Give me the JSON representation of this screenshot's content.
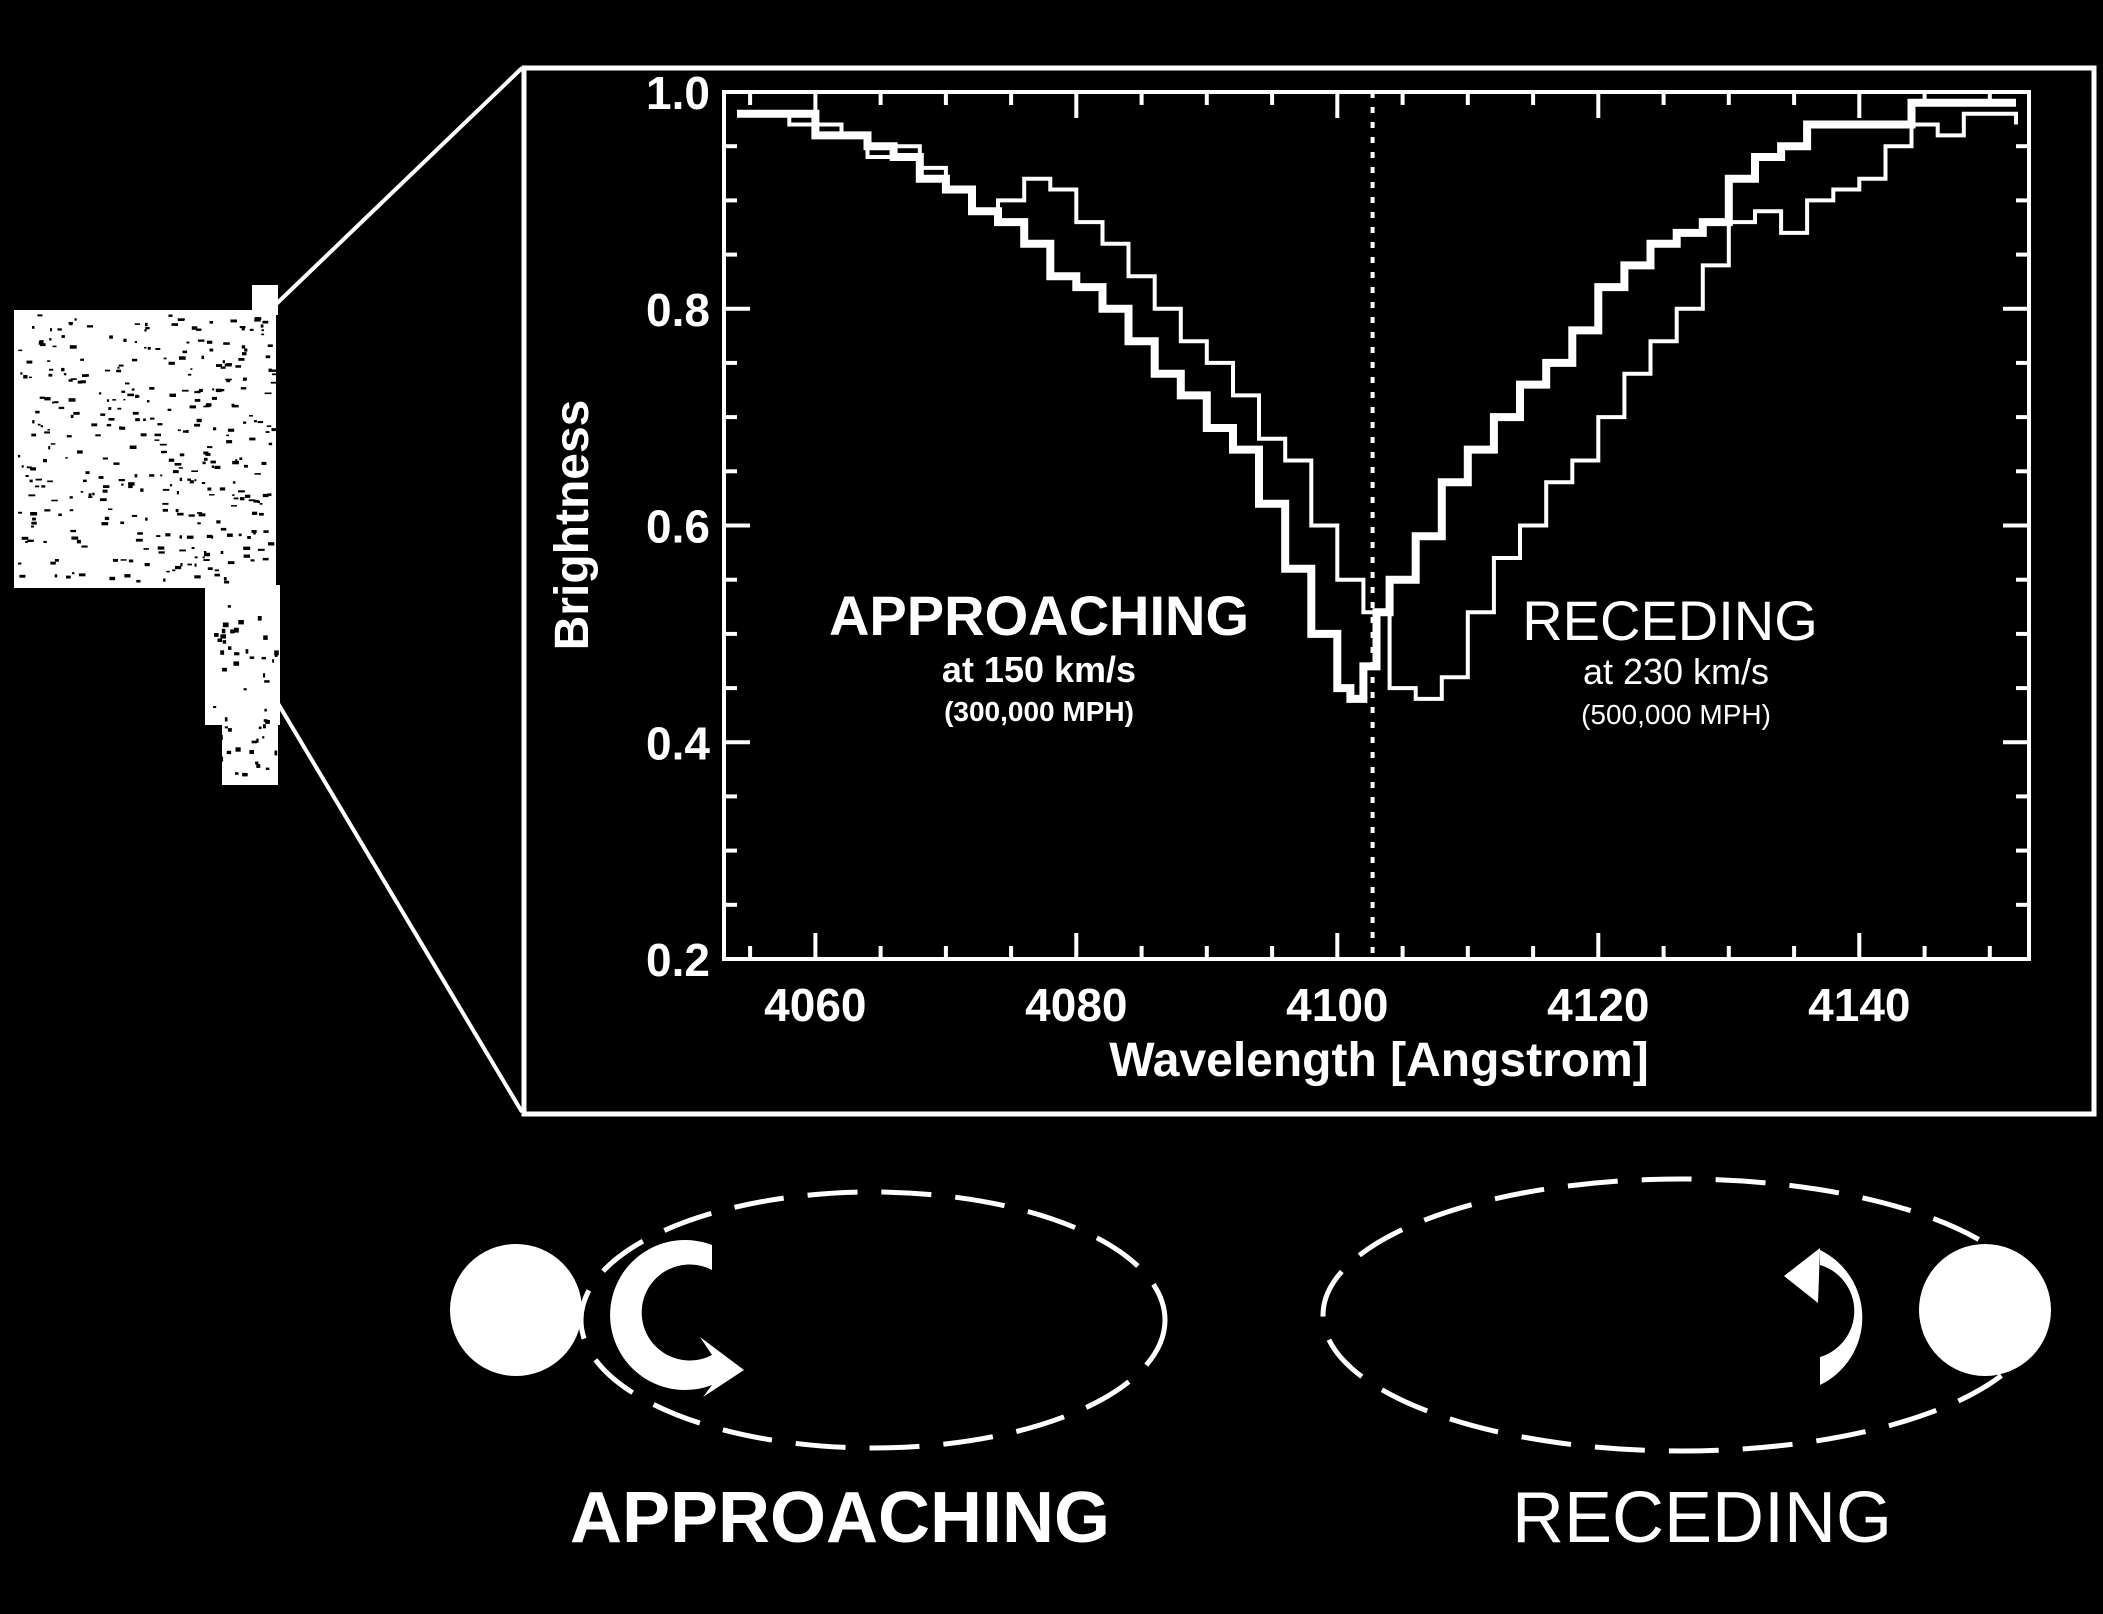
{
  "chart_data": {
    "type": "line",
    "xlabel": "Wavelength [Angstrom]",
    "ylabel": "Brightness",
    "xlim": [
      4053,
      4153
    ],
    "ylim": [
      0.2,
      1.0
    ],
    "x_ticks": [
      4060,
      4080,
      4100,
      4120,
      4140
    ],
    "y_ticks": [
      0.2,
      0.4,
      0.6,
      0.8,
      1.0
    ],
    "y_tick_labels": [
      "0.2",
      "0.4",
      "0.6",
      "0.8",
      "1.0"
    ],
    "rest_wavelength": 4102.7,
    "series": [
      {
        "points": [
          [
            4054,
            0.98
          ],
          [
            4058,
            0.98
          ],
          [
            4060,
            0.96
          ],
          [
            4062,
            0.96
          ],
          [
            4064,
            0.95
          ],
          [
            4066,
            0.94
          ],
          [
            4068,
            0.92
          ],
          [
            4070,
            0.91
          ],
          [
            4072,
            0.89
          ],
          [
            4074,
            0.88
          ],
          [
            4076,
            0.86
          ],
          [
            4078,
            0.83
          ],
          [
            4080,
            0.82
          ],
          [
            4082,
            0.8
          ],
          [
            4084,
            0.77
          ],
          [
            4086,
            0.74
          ],
          [
            4088,
            0.72
          ],
          [
            4090,
            0.69
          ],
          [
            4092,
            0.67
          ],
          [
            4094,
            0.62
          ],
          [
            4096,
            0.56
          ],
          [
            4098,
            0.5
          ],
          [
            4100,
            0.45
          ],
          [
            4101,
            0.44
          ],
          [
            4102,
            0.47
          ],
          [
            4103,
            0.52
          ],
          [
            4104,
            0.55
          ],
          [
            4106,
            0.59
          ],
          [
            4108,
            0.64
          ],
          [
            4110,
            0.67
          ],
          [
            4112,
            0.7
          ],
          [
            4114,
            0.73
          ],
          [
            4116,
            0.75
          ],
          [
            4118,
            0.78
          ],
          [
            4120,
            0.82
          ],
          [
            4122,
            0.84
          ],
          [
            4124,
            0.86
          ],
          [
            4126,
            0.87
          ],
          [
            4128,
            0.88
          ],
          [
            4130,
            0.92
          ],
          [
            4132,
            0.94
          ],
          [
            4134,
            0.95
          ],
          [
            4136,
            0.97
          ],
          [
            4140,
            0.97
          ],
          [
            4144,
            0.99
          ],
          [
            4150,
            0.99
          ],
          [
            4152,
            0.99
          ]
        ]
      },
      {
        "points": [
          [
            4054,
            0.98
          ],
          [
            4058,
            0.97
          ],
          [
            4062,
            0.96
          ],
          [
            4064,
            0.94
          ],
          [
            4066,
            0.95
          ],
          [
            4068,
            0.93
          ],
          [
            4070,
            0.91
          ],
          [
            4072,
            0.89
          ],
          [
            4074,
            0.9
          ],
          [
            4076,
            0.92
          ],
          [
            4078,
            0.91
          ],
          [
            4080,
            0.88
          ],
          [
            4082,
            0.86
          ],
          [
            4084,
            0.83
          ],
          [
            4086,
            0.8
          ],
          [
            4088,
            0.77
          ],
          [
            4090,
            0.75
          ],
          [
            4092,
            0.72
          ],
          [
            4094,
            0.68
          ],
          [
            4096,
            0.66
          ],
          [
            4098,
            0.6
          ],
          [
            4100,
            0.55
          ],
          [
            4102,
            0.52
          ],
          [
            4104,
            0.45
          ],
          [
            4106,
            0.44
          ],
          [
            4108,
            0.46
          ],
          [
            4110,
            0.52
          ],
          [
            4112,
            0.57
          ],
          [
            4114,
            0.6
          ],
          [
            4116,
            0.64
          ],
          [
            4118,
            0.66
          ],
          [
            4120,
            0.7
          ],
          [
            4122,
            0.74
          ],
          [
            4124,
            0.77
          ],
          [
            4126,
            0.8
          ],
          [
            4128,
            0.84
          ],
          [
            4130,
            0.88
          ],
          [
            4132,
            0.89
          ],
          [
            4134,
            0.87
          ],
          [
            4136,
            0.9
          ],
          [
            4138,
            0.91
          ],
          [
            4140,
            0.92
          ],
          [
            4142,
            0.95
          ],
          [
            4144,
            0.97
          ],
          [
            4146,
            0.96
          ],
          [
            4148,
            0.98
          ],
          [
            4150,
            0.98
          ],
          [
            4152,
            0.97
          ]
        ]
      }
    ],
    "annotations": {
      "approaching": {
        "title": "APPROACHING",
        "speed": "at 150 km/s",
        "mph": "(300,000 MPH)"
      },
      "receding": {
        "title": "RECEDING",
        "speed": "at 230 km/s",
        "mph": "(500,000 MPH)"
      }
    }
  },
  "diagram": {
    "left_label": "APPROACHING",
    "right_label": "RECEDING"
  },
  "colors": {
    "background": "#000000",
    "foreground": "#ffffff"
  }
}
